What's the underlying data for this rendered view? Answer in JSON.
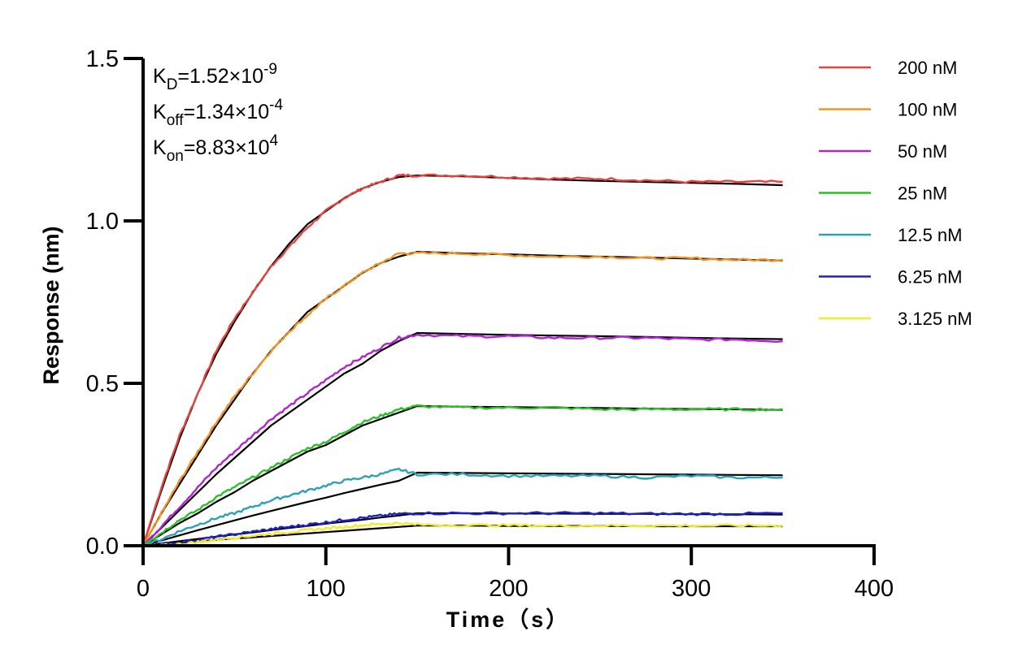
{
  "chart_data": {
    "type": "line",
    "xlabel": "Time（s）",
    "ylabel": "Response (nm)",
    "xlim": [
      0,
      400
    ],
    "ylim": [
      0,
      1.5
    ],
    "xticks": [
      "0",
      "100",
      "200",
      "300",
      "400"
    ],
    "yticks": [
      "0.0",
      "0.5",
      "1.0",
      "1.5"
    ],
    "grid": false,
    "legend_position": "top-right",
    "annotations": [
      {
        "key": "kd",
        "base": "K",
        "sub": "D",
        "value": "=1.52×10",
        "exp": "-9"
      },
      {
        "key": "koff",
        "base": "K",
        "sub": "off",
        "value": "=1.34×10",
        "exp": "-4"
      },
      {
        "key": "kon",
        "base": "K",
        "sub": "on",
        "value": "=8.83×10",
        "exp": "4"
      }
    ],
    "fit_color": "#000000",
    "x": [
      0,
      10,
      20,
      30,
      40,
      50,
      60,
      70,
      80,
      90,
      100,
      110,
      120,
      130,
      140,
      150,
      175,
      200,
      225,
      250,
      275,
      300,
      325,
      350
    ],
    "series": [
      {
        "name": "200 nM",
        "color": "#e8423f",
        "values": [
          0,
          0.18,
          0.34,
          0.47,
          0.6,
          0.7,
          0.78,
          0.86,
          0.92,
          0.98,
          1.03,
          1.07,
          1.1,
          1.12,
          1.14,
          1.14,
          1.14,
          1.135,
          1.13,
          1.13,
          1.125,
          1.12,
          1.12,
          1.12
        ],
        "fit": [
          0,
          0.17,
          0.33,
          0.47,
          0.59,
          0.69,
          0.78,
          0.86,
          0.93,
          0.99,
          1.03,
          1.07,
          1.1,
          1.12,
          1.135,
          1.14,
          1.137,
          1.132,
          1.127,
          1.123,
          1.12,
          1.117,
          1.114,
          1.11
        ]
      },
      {
        "name": "100 nM",
        "color": "#f39322",
        "values": [
          0,
          0.1,
          0.2,
          0.29,
          0.38,
          0.46,
          0.53,
          0.6,
          0.66,
          0.71,
          0.76,
          0.8,
          0.84,
          0.87,
          0.9,
          0.9,
          0.9,
          0.895,
          0.89,
          0.89,
          0.885,
          0.885,
          0.88,
          0.88
        ],
        "fit": [
          0,
          0.1,
          0.19,
          0.28,
          0.37,
          0.45,
          0.53,
          0.6,
          0.66,
          0.72,
          0.76,
          0.8,
          0.84,
          0.87,
          0.89,
          0.905,
          0.9,
          0.897,
          0.893,
          0.89,
          0.887,
          0.884,
          0.881,
          0.878
        ]
      },
      {
        "name": "50 nM",
        "color": "#b522d6",
        "values": [
          0,
          0.06,
          0.12,
          0.18,
          0.24,
          0.29,
          0.34,
          0.39,
          0.43,
          0.47,
          0.51,
          0.55,
          0.58,
          0.61,
          0.64,
          0.65,
          0.645,
          0.645,
          0.64,
          0.64,
          0.64,
          0.635,
          0.635,
          0.63
        ],
        "fit": [
          0,
          0.055,
          0.11,
          0.165,
          0.22,
          0.27,
          0.32,
          0.37,
          0.41,
          0.45,
          0.49,
          0.53,
          0.56,
          0.6,
          0.63,
          0.655,
          0.652,
          0.649,
          0.647,
          0.645,
          0.643,
          0.64,
          0.638,
          0.636
        ]
      },
      {
        "name": "25 nM",
        "color": "#2fbe2a",
        "values": [
          0,
          0.04,
          0.08,
          0.11,
          0.15,
          0.18,
          0.21,
          0.24,
          0.27,
          0.3,
          0.32,
          0.35,
          0.38,
          0.4,
          0.42,
          0.43,
          0.425,
          0.425,
          0.425,
          0.42,
          0.42,
          0.42,
          0.42,
          0.42
        ],
        "fit": [
          0,
          0.035,
          0.07,
          0.1,
          0.135,
          0.165,
          0.2,
          0.23,
          0.26,
          0.29,
          0.31,
          0.34,
          0.37,
          0.39,
          0.41,
          0.43,
          0.428,
          0.427,
          0.425,
          0.424,
          0.422,
          0.421,
          0.42,
          0.418
        ]
      },
      {
        "name": "12.5 nM",
        "color": "#2aa2b8",
        "values": [
          0,
          0.02,
          0.045,
          0.065,
          0.085,
          0.1,
          0.12,
          0.14,
          0.155,
          0.17,
          0.185,
          0.2,
          0.21,
          0.22,
          0.235,
          0.22,
          0.22,
          0.215,
          0.215,
          0.215,
          0.21,
          0.215,
          0.21,
          0.21
        ],
        "fit": [
          0,
          0.016,
          0.032,
          0.048,
          0.063,
          0.078,
          0.093,
          0.107,
          0.121,
          0.135,
          0.148,
          0.162,
          0.175,
          0.188,
          0.2,
          0.225,
          0.224,
          0.223,
          0.222,
          0.221,
          0.22,
          0.219,
          0.218,
          0.217
        ]
      },
      {
        "name": "6.25 nM",
        "color": "#1f23c6",
        "values": [
          0,
          0.005,
          0.01,
          0.018,
          0.027,
          0.035,
          0.043,
          0.051,
          0.058,
          0.065,
          0.072,
          0.08,
          0.086,
          0.092,
          0.098,
          0.1,
          0.1,
          0.1,
          0.1,
          0.1,
          0.098,
          0.098,
          0.098,
          0.1
        ],
        "fit": [
          0,
          0.007,
          0.014,
          0.021,
          0.028,
          0.035,
          0.041,
          0.048,
          0.055,
          0.061,
          0.068,
          0.074,
          0.08,
          0.087,
          0.093,
          0.1,
          0.1,
          0.099,
          0.099,
          0.098,
          0.098,
          0.097,
          0.097,
          0.096
        ]
      },
      {
        "name": "3.125 nM",
        "color": "#f2ea2b",
        "values": [
          0,
          0.0,
          0.005,
          0.012,
          0.018,
          0.025,
          0.031,
          0.037,
          0.042,
          0.048,
          0.053,
          0.058,
          0.063,
          0.067,
          0.07,
          0.065,
          0.063,
          0.063,
          0.062,
          0.062,
          0.062,
          0.062,
          0.062,
          0.062
        ],
        "fit": [
          0,
          0.004,
          0.009,
          0.013,
          0.018,
          0.022,
          0.026,
          0.03,
          0.034,
          0.038,
          0.042,
          0.046,
          0.05,
          0.054,
          0.058,
          0.062,
          0.062,
          0.061,
          0.061,
          0.061,
          0.06,
          0.06,
          0.06,
          0.06
        ]
      }
    ]
  }
}
